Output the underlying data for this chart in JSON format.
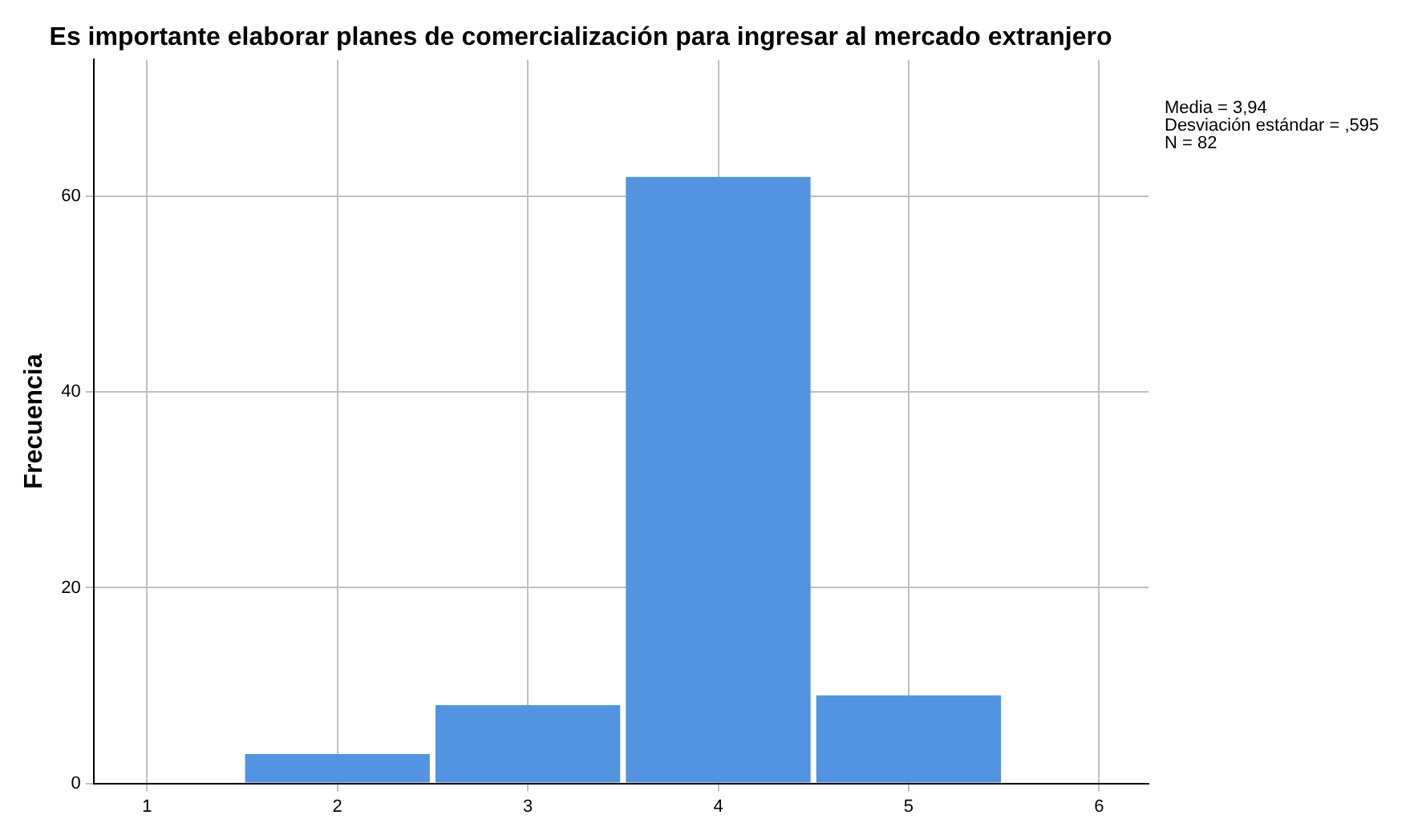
{
  "chart_data": {
    "type": "histogram",
    "title": "Es importante elaborar planes de comercialización para ingresar al mercado extranjero",
    "ylabel": "Frecuencia",
    "bins": [
      1.5,
      2.5,
      3.5,
      4.5,
      5.5
    ],
    "values": [
      3,
      8,
      62,
      9
    ],
    "color": "#5294e2",
    "xlim": [
      0.72,
      6.26
    ],
    "xticks": [
      1,
      2,
      3,
      4,
      5,
      6
    ],
    "ylim": [
      0,
      74
    ],
    "yticks": [
      0,
      20,
      40,
      60
    ],
    "grid": true,
    "annotations": [
      "Media = 3,94",
      "Desviación estándar = ,595",
      "N = 82"
    ]
  }
}
